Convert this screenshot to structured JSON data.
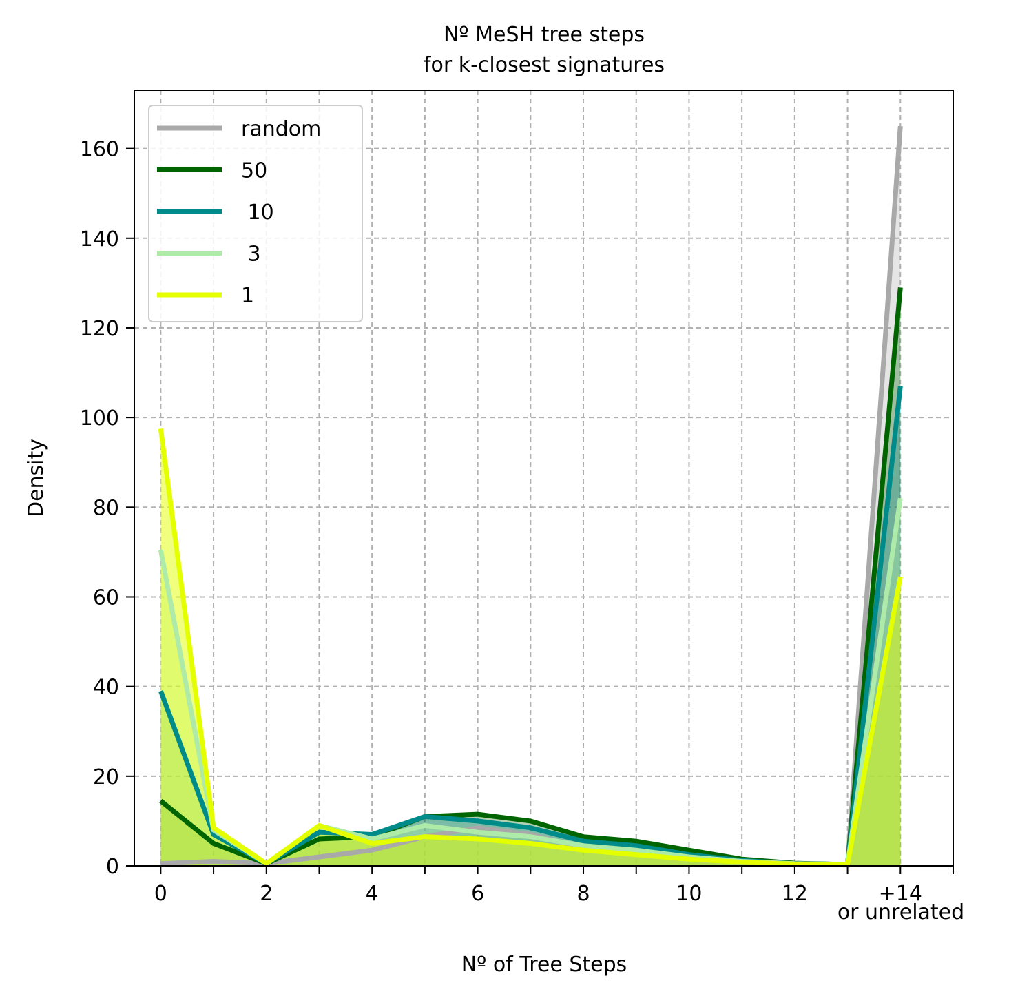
{
  "chart_data": {
    "type": "line",
    "title_lines": [
      "Nº MeSH tree steps",
      "for k-closest signatures"
    ],
    "xlabel": "Nº of Tree Steps",
    "ylabel": "Density",
    "x": [
      0,
      1,
      2,
      3,
      4,
      5,
      6,
      7,
      8,
      9,
      10,
      11,
      12,
      13,
      14
    ],
    "xlim": [
      -0.5,
      15
    ],
    "ylim": [
      0,
      173
    ],
    "x_major_ticks": [
      0,
      2,
      4,
      6,
      8,
      10,
      12,
      14
    ],
    "x_minor_ticks": [
      1,
      3,
      5,
      7,
      9,
      11,
      13,
      15
    ],
    "x_tick_labels": [
      "0",
      "2",
      "4",
      "6",
      "8",
      "10",
      "12",
      "+14"
    ],
    "x_tick_sublabel": "or unrelated",
    "y_ticks": [
      0,
      20,
      40,
      60,
      80,
      100,
      120,
      140,
      160
    ],
    "y_tick_labels": [
      "0",
      "20",
      "40",
      "60",
      "80",
      "100",
      "120",
      "140",
      "160"
    ],
    "grid": true,
    "legend_position": "top-left",
    "series": [
      {
        "name": "random",
        "color": "#a9a9a9",
        "fill_opacity": 0.3,
        "values": [
          0.5,
          1.0,
          0.5,
          2.0,
          3.5,
          6.5,
          8.5,
          7.0,
          4.0,
          3.0,
          1.5,
          0.8,
          0.4,
          0.2,
          165.0
        ]
      },
      {
        "name": "50",
        "color": "#006400",
        "fill_opacity": 0.3,
        "values": [
          14.5,
          5.0,
          0.5,
          6.0,
          6.5,
          11.0,
          11.5,
          10.0,
          6.5,
          5.5,
          3.5,
          1.5,
          0.6,
          0.3,
          129.0
        ]
      },
      {
        "name": " 10",
        "color": "#008b8b",
        "fill_opacity": 0.3,
        "values": [
          39.0,
          7.0,
          0.5,
          7.5,
          7.0,
          11.0,
          10.0,
          8.5,
          5.5,
          4.5,
          2.5,
          1.2,
          0.5,
          0.3,
          107.0
        ]
      },
      {
        "name": " 3",
        "color": "#aeeaa8",
        "fill_opacity": 0.4,
        "values": [
          70.5,
          8.0,
          0.5,
          9.0,
          6.0,
          9.0,
          7.5,
          6.5,
          4.5,
          3.5,
          2.0,
          1.0,
          0.5,
          0.3,
          82.0
        ]
      },
      {
        "name": "1",
        "color": "#e4ff00",
        "fill_opacity": 0.5,
        "values": [
          97.5,
          8.5,
          0.5,
          9.0,
          5.0,
          6.5,
          6.0,
          5.0,
          3.5,
          2.5,
          1.5,
          0.8,
          0.4,
          0.3,
          64.5
        ]
      }
    ]
  }
}
